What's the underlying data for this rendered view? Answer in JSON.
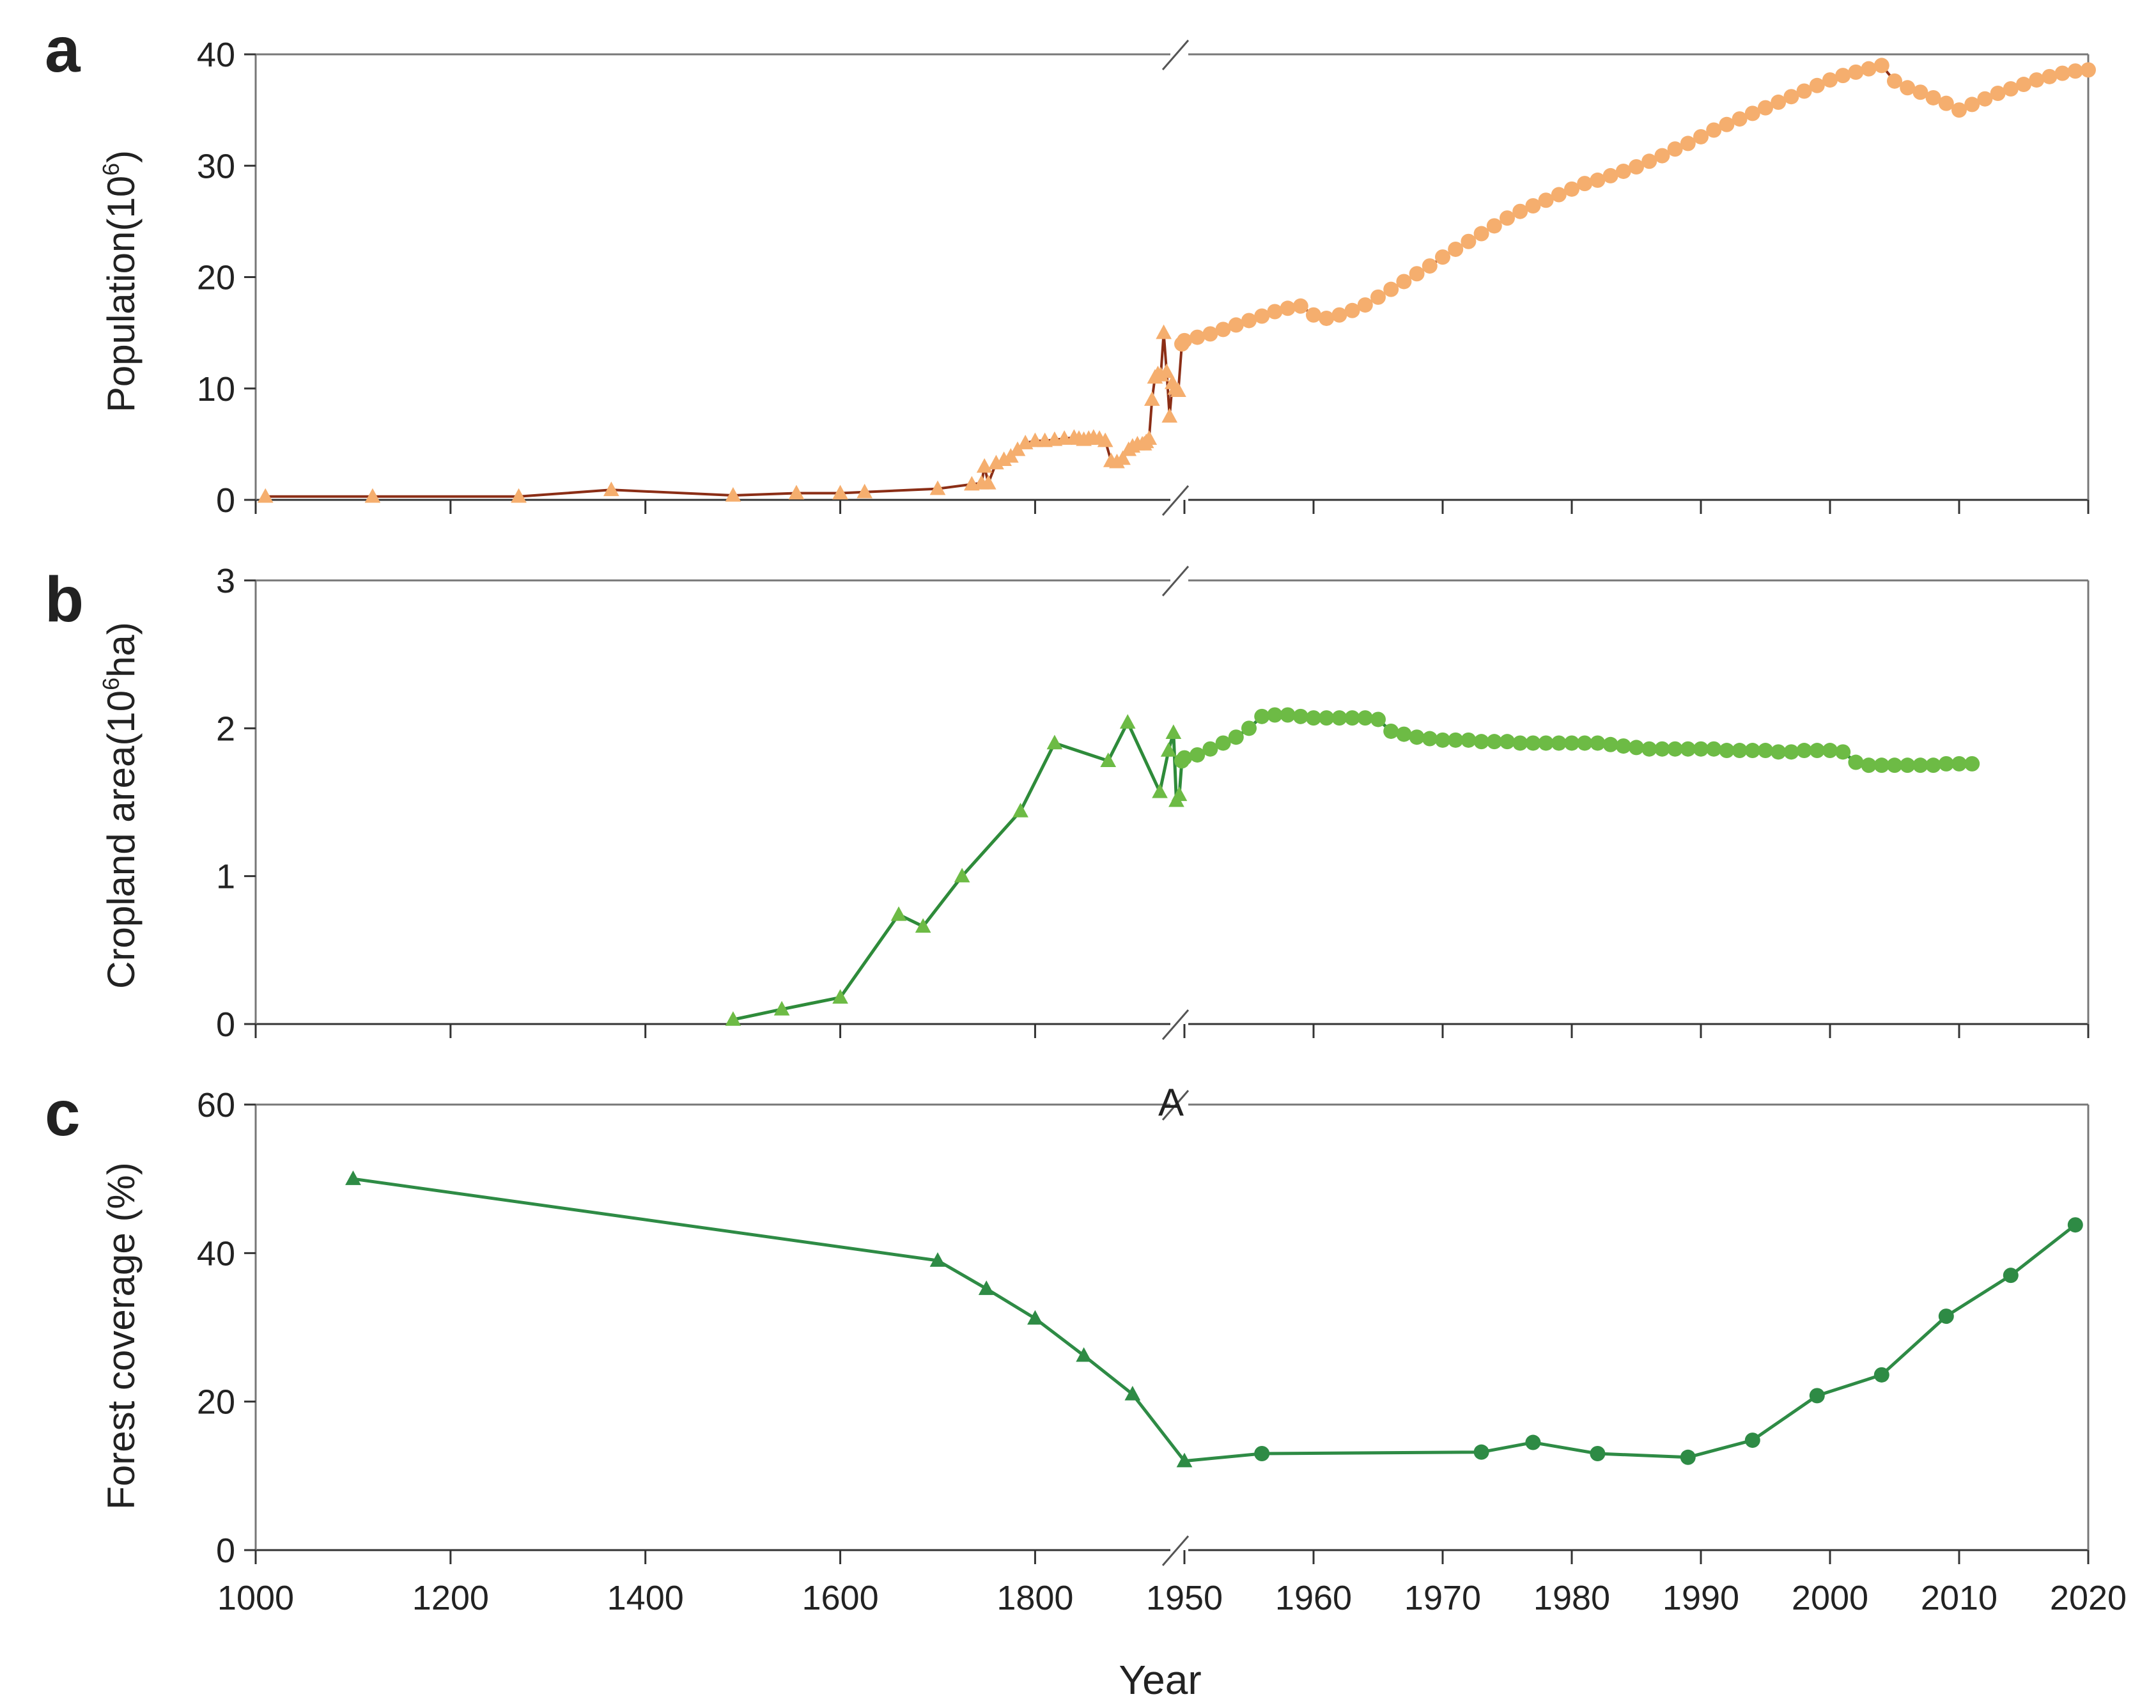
{
  "x_axis": {
    "title": "Year",
    "left_ticks": [
      "1000",
      "1200",
      "1400",
      "1600",
      "1800"
    ],
    "right_ticks": [
      "1950",
      "1960",
      "1970",
      "1980",
      "1990",
      "2000",
      "2010",
      "2020"
    ]
  },
  "colors": {
    "population_marker": "#F5AE6E",
    "population_line": "#8B2E16",
    "cropland": "#6DBB45",
    "cropland_line": "#2E8B3A",
    "forest": "#2E8B45",
    "axis": "#777777"
  },
  "panel_a": {
    "letter": "a",
    "ylabel": "Population(10",
    "ylabel_sup": "6",
    "ylabel_end": ")"
  },
  "panel_b": {
    "letter": "b",
    "ylabel": "Cropland area(10",
    "ylabel_sup": "6",
    "ylabel_end": "ha)"
  },
  "panel_c": {
    "letter": "c",
    "ylabel": "Forest coverage (%)"
  },
  "stray_mark": "A",
  "chart_data": [
    {
      "panel": "a",
      "type": "line",
      "ylabel": "Population(10^6)",
      "ylim": [
        0,
        40
      ],
      "yticks": [
        "0",
        "10",
        "20",
        "30",
        "40"
      ],
      "x_axis": "broken: 1000–1950 compressed, 1950–2020 expanded",
      "series": [
        {
          "marker": "triangle",
          "x": [
            1010,
            1120,
            1270,
            1365,
            1490,
            1555,
            1600,
            1625,
            1700,
            1735,
            1745,
            1748,
            1752,
            1760,
            1768,
            1775,
            1782,
            1790,
            1800,
            1810,
            1820,
            1830,
            1840,
            1845,
            1850,
            1855,
            1860,
            1866,
            1872,
            1878,
            1884,
            1890,
            1896,
            1900,
            1905,
            1910,
            1912,
            1914,
            1917,
            1920,
            1923,
            1926,
            1929,
            1932,
            1935,
            1938,
            1941,
            1944,
            1947
          ],
          "y": [
            0.3,
            0.3,
            0.3,
            0.9,
            0.4,
            0.6,
            0.6,
            0.7,
            1.0,
            1.4,
            1.5,
            3.0,
            1.5,
            3.3,
            3.6,
            3.9,
            4.5,
            5.1,
            5.3,
            5.3,
            5.4,
            5.5,
            5.6,
            5.5,
            5.4,
            5.5,
            5.6,
            5.5,
            5.3,
            3.5,
            3.4,
            3.7,
            4.5,
            4.8,
            5.0,
            5.0,
            5.0,
            5.2,
            5.5,
            9.0,
            11.0,
            11.3,
            11.2,
            15.0,
            11.5,
            7.5,
            10.5,
            10.0,
            9.8
          ]
        },
        {
          "marker": "circle",
          "x": [
            1949,
            1950,
            1951,
            1952,
            1953,
            1954,
            1955,
            1956,
            1957,
            1958,
            1959,
            1960,
            1961,
            1962,
            1963,
            1964,
            1965,
            1966,
            1967,
            1968,
            1969,
            1970,
            1971,
            1972,
            1973,
            1974,
            1975,
            1976,
            1977,
            1978,
            1979,
            1980,
            1981,
            1982,
            1983,
            1984,
            1985,
            1986,
            1987,
            1988,
            1989,
            1990,
            1991,
            1992,
            1993,
            1994,
            1995,
            1996,
            1997,
            1998,
            1999,
            2000,
            2001,
            2002,
            2003,
            2004,
            2005,
            2006,
            2007,
            2008,
            2009,
            2010,
            2011,
            2012,
            2013,
            2014,
            2015,
            2016,
            2017,
            2018,
            2019,
            2020
          ],
          "y": [
            14.0,
            14.3,
            14.6,
            14.9,
            15.3,
            15.7,
            16.1,
            16.5,
            16.9,
            17.2,
            17.4,
            16.6,
            16.3,
            16.6,
            17.0,
            17.5,
            18.2,
            18.9,
            19.6,
            20.3,
            21.0,
            21.8,
            22.5,
            23.2,
            23.9,
            24.6,
            25.3,
            25.9,
            26.4,
            26.9,
            27.4,
            27.9,
            28.4,
            28.7,
            29.1,
            29.5,
            29.9,
            30.4,
            30.9,
            31.5,
            32.0,
            32.6,
            33.2,
            33.7,
            34.2,
            34.7,
            35.2,
            35.7,
            36.2,
            36.7,
            37.2,
            37.7,
            38.1,
            38.4,
            38.7,
            39.0,
            37.6,
            37.0,
            36.6,
            36.1,
            35.6,
            35.0,
            35.5,
            36.0,
            36.5,
            36.9,
            37.3,
            37.7,
            38.0,
            38.3,
            38.5,
            38.6
          ]
        }
      ]
    },
    {
      "panel": "b",
      "type": "line",
      "ylabel": "Cropland area(10^6ha)",
      "ylim": [
        0,
        3
      ],
      "yticks": [
        "0",
        "1",
        "2",
        "3"
      ],
      "series": [
        {
          "marker": "triangle",
          "x": [
            1490,
            1540,
            1600,
            1660,
            1685,
            1725,
            1785,
            1820,
            1875,
            1895,
            1928,
            1937,
            1942,
            1945,
            1948
          ],
          "y": [
            0.03,
            0.1,
            0.18,
            0.74,
            0.66,
            1.0,
            1.44,
            1.9,
            1.78,
            2.04,
            1.57,
            1.85,
            1.97,
            1.51,
            1.55
          ]
        },
        {
          "marker": "circle",
          "x": [
            1949,
            1950,
            1951,
            1952,
            1953,
            1954,
            1955,
            1956,
            1957,
            1958,
            1959,
            1960,
            1961,
            1962,
            1963,
            1964,
            1965,
            1966,
            1967,
            1968,
            1969,
            1970,
            1971,
            1972,
            1973,
            1974,
            1975,
            1976,
            1977,
            1978,
            1979,
            1980,
            1981,
            1982,
            1983,
            1984,
            1985,
            1986,
            1987,
            1988,
            1989,
            1990,
            1991,
            1992,
            1993,
            1994,
            1995,
            1996,
            1997,
            1998,
            1999,
            2000,
            2001,
            2002,
            2003,
            2004,
            2005,
            2006,
            2007,
            2008,
            2009,
            2010,
            2011
          ],
          "y": [
            1.78,
            1.8,
            1.82,
            1.86,
            1.9,
            1.94,
            2.0,
            2.08,
            2.09,
            2.09,
            2.08,
            2.07,
            2.07,
            2.07,
            2.07,
            2.07,
            2.06,
            1.98,
            1.96,
            1.94,
            1.93,
            1.92,
            1.92,
            1.92,
            1.91,
            1.91,
            1.91,
            1.9,
            1.9,
            1.9,
            1.9,
            1.9,
            1.9,
            1.9,
            1.89,
            1.88,
            1.87,
            1.86,
            1.86,
            1.86,
            1.86,
            1.86,
            1.86,
            1.85,
            1.85,
            1.85,
            1.85,
            1.84,
            1.84,
            1.85,
            1.85,
            1.85,
            1.84,
            1.77,
            1.75,
            1.75,
            1.75,
            1.75,
            1.75,
            1.75,
            1.76,
            1.76,
            1.76
          ]
        }
      ]
    },
    {
      "panel": "c",
      "type": "line",
      "ylabel": "Forest coverage (%)",
      "ylim": [
        0,
        60
      ],
      "yticks": [
        "0",
        "20",
        "40",
        "60"
      ],
      "series": [
        {
          "marker": "triangle",
          "x": [
            1100,
            1700,
            1750,
            1800,
            1850,
            1900,
            1950
          ],
          "y": [
            50,
            39,
            35.2,
            31.2,
            26.2,
            21,
            12
          ]
        },
        {
          "marker": "circle",
          "x": [
            1956,
            1973,
            1977,
            1982,
            1989,
            1994,
            1999,
            2004,
            2009,
            2014,
            2019
          ],
          "y": [
            13,
            13.2,
            14.5,
            13,
            12.5,
            14.8,
            20.8,
            23.6,
            31.5,
            37,
            43.8
          ]
        }
      ]
    }
  ]
}
